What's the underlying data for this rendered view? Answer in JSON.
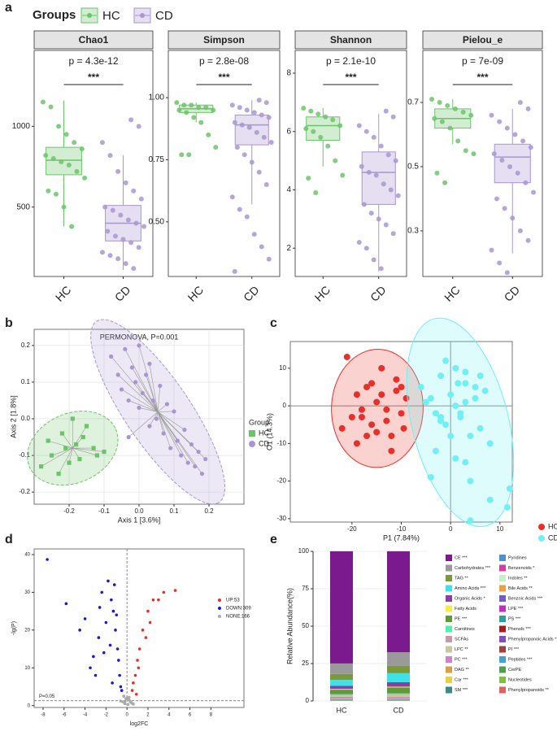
{
  "chart_data": [
    {
      "type": "box",
      "panel_label": "a",
      "legend_title": "Groups",
      "categories": [
        "HC",
        "CD"
      ],
      "series": [
        {
          "name": "HC",
          "color": "#6cc46a"
        },
        {
          "name": "CD",
          "color": "#a996d0"
        }
      ],
      "facets": [
        {
          "title": "Chao1",
          "annotation": "p = 4.3e-12",
          "significance": "***",
          "ylim": [
            70,
            1470
          ],
          "yticks": [
            500,
            1000
          ],
          "boxes": [
            {
              "whislo": 380,
              "q1": 700,
              "med": 790,
              "q3": 870,
              "whishi": 1160
            },
            {
              "whislo": 110,
              "q1": 290,
              "med": 400,
              "q3": 510,
              "whishi": 820
            }
          ],
          "points": [
            [
              1150,
              1120,
              1000,
              950,
              900,
              860,
              820,
              800,
              780,
              760,
              720,
              680,
              600,
              580,
              500,
              380
            ],
            [
              1040,
              1000,
              900,
              820,
              720,
              650,
              600,
              550,
              500,
              480,
              450,
              420,
              400,
              380,
              350,
              320,
              300,
              280,
              250,
              220,
              200,
              180,
              150,
              120
            ]
          ]
        },
        {
          "title": "Simpson",
          "annotation": "p = 2.8e-08",
          "significance": "***",
          "ylim": [
            0.28,
            1.19
          ],
          "yticks": [
            {
              "value": 0.5,
              "label": "0.50"
            },
            {
              "value": 0.75,
              "label": "0.75"
            },
            {
              "value": 1,
              "label": "1.00"
            }
          ],
          "boxes": [
            {
              "whislo": 0.9,
              "q1": 0.94,
              "med": 0.955,
              "q3": 0.97,
              "whishi": 0.98
            },
            {
              "whislo": 0.57,
              "q1": 0.81,
              "med": 0.89,
              "q3": 0.93,
              "whishi": 0.99
            }
          ],
          "points": [
            [
              0.98,
              0.97,
              0.97,
              0.96,
              0.96,
              0.95,
              0.95,
              0.94,
              0.92,
              0.9,
              0.85,
              0.8,
              0.77,
              0.77
            ],
            [
              0.99,
              0.98,
              0.97,
              0.96,
              0.95,
              0.94,
              0.93,
              0.92,
              0.9,
              0.89,
              0.88,
              0.86,
              0.84,
              0.82,
              0.8,
              0.77,
              0.74,
              0.7,
              0.65,
              0.6,
              0.55,
              0.52,
              0.45,
              0.4,
              0.35,
              0.3
            ]
          ]
        },
        {
          "title": "Shannon",
          "annotation": "p = 2.1e-10",
          "significance": "***",
          "ylim": [
            1.03,
            8.78
          ],
          "yticks": [
            2,
            4,
            6,
            8
          ],
          "boxes": [
            {
              "whislo": 4.8,
              "q1": 5.7,
              "med": 6.2,
              "q3": 6.5,
              "whishi": 6.8
            },
            {
              "whislo": 1.2,
              "q1": 3.5,
              "med": 4.6,
              "q3": 5.3,
              "whishi": 6.6
            }
          ],
          "points": [
            [
              6.8,
              6.7,
              6.6,
              6.5,
              6.4,
              6.2,
              6.1,
              6.0,
              5.8,
              5.5,
              5.0,
              4.5,
              4.4,
              3.9
            ],
            [
              6.7,
              6.5,
              6.2,
              6.0,
              5.8,
              5.5,
              5.2,
              5.0,
              4.8,
              4.6,
              4.5,
              4.2,
              4.0,
              3.8,
              3.5,
              3.2,
              3.0,
              2.8,
              2.5,
              2.2,
              2.0,
              1.6,
              1.3
            ]
          ]
        },
        {
          "title": "Pielou_e",
          "annotation": "p = 7e-09",
          "significance": "***",
          "ylim": [
            0.158,
            0.862
          ],
          "yticks": [
            0.3,
            0.5,
            0.7
          ],
          "boxes": [
            {
              "whislo": 0.57,
              "q1": 0.62,
              "med": 0.65,
              "q3": 0.68,
              "whishi": 0.71
            },
            {
              "whislo": 0.23,
              "q1": 0.45,
              "med": 0.53,
              "q3": 0.57,
              "whishi": 0.68
            }
          ],
          "points": [
            [
              0.71,
              0.7,
              0.69,
              0.68,
              0.67,
              0.66,
              0.65,
              0.64,
              0.62,
              0.58,
              0.55,
              0.54,
              0.48,
              0.45
            ],
            [
              0.7,
              0.68,
              0.66,
              0.64,
              0.62,
              0.6,
              0.58,
              0.56,
              0.54,
              0.52,
              0.5,
              0.48,
              0.45,
              0.42,
              0.4,
              0.37,
              0.34,
              0.3,
              0.27,
              0.24,
              0.2,
              0.17
            ]
          ]
        }
      ]
    },
    {
      "type": "scatter",
      "panel_label": "b",
      "title": "PERMONOVA, P=0.001",
      "x_label": "Axis 1 [3.6%]",
      "y_label": "Axis 2 [1.8%]",
      "legend_title": "Group",
      "legend": "right",
      "grid": true,
      "ellipse": true,
      "spokes": true,
      "xlim": [
        -0.3,
        0.3
      ],
      "ylim": [
        -0.233,
        0.244
      ],
      "xticks": [
        -0.2,
        -0.1,
        {
          "value": 0,
          "label": "0.0"
        },
        0.1,
        0.2
      ],
      "yticks": [
        -0.2,
        -0.1,
        {
          "value": 0,
          "label": "0.0"
        },
        0.1,
        0.2
      ],
      "series": [
        {
          "name": "HC",
          "color": "#6cc46a",
          "marker": "square",
          "x": [
            -0.28,
            -0.26,
            -0.25,
            -0.23,
            -0.22,
            -0.21,
            -0.2,
            -0.19,
            -0.18,
            -0.17,
            -0.16,
            -0.15,
            -0.13,
            -0.12,
            -0.1
          ],
          "y": [
            -0.13,
            -0.06,
            -0.1,
            -0.15,
            -0.04,
            -0.08,
            -0.12,
            0.0,
            -0.07,
            -0.11,
            -0.05,
            -0.02,
            -0.08,
            -0.1,
            -0.09
          ]
        },
        {
          "name": "CD",
          "color": "#a996d0",
          "marker": "circle",
          "x": [
            -0.08,
            -0.06,
            -0.05,
            -0.04,
            -0.03,
            -0.02,
            -0.01,
            0.0,
            0.0,
            0.01,
            0.02,
            0.03,
            0.03,
            0.04,
            0.05,
            0.06,
            0.07,
            0.08,
            0.09,
            0.1,
            0.11,
            0.12,
            0.13,
            0.14,
            0.15,
            0.16,
            0.17,
            0.18,
            0.19,
            -0.03
          ],
          "y": [
            0.17,
            0.12,
            0.08,
            0.19,
            0.05,
            0.14,
            0.1,
            0.2,
            0.03,
            0.07,
            0.12,
            -0.02,
            0.15,
            0.05,
            0.0,
            0.09,
            -0.04,
            0.04,
            -0.08,
            0.02,
            -0.06,
            -0.1,
            -0.03,
            -0.12,
            -0.07,
            -0.13,
            -0.09,
            -0.15,
            -0.11,
            -0.05
          ]
        }
      ]
    },
    {
      "type": "scatter",
      "panel_label": "c",
      "x_label": "P1 (7.84%)",
      "y_label": "O1 (14.3%)",
      "legend": "right",
      "grid": false,
      "ellipse": true,
      "spokes": false,
      "xlim": [
        -32.5,
        12.5
      ],
      "ylim": [
        -30.9,
        17.1
      ],
      "xticks": [
        -20,
        -10,
        0,
        10
      ],
      "yticks": [
        -30,
        -20,
        -10,
        0,
        10
      ],
      "hlines": [
        0
      ],
      "vlines": [
        0
      ],
      "series": [
        {
          "name": "HC",
          "color": "#e8302a",
          "marker": "circle",
          "x": [
            -21,
            -19,
            -18,
            -17,
            -16,
            -15,
            -14,
            -13,
            -12,
            -11,
            -10,
            -9,
            -13,
            -15,
            -17,
            -19,
            -22,
            -20,
            -12,
            -10,
            -14,
            -18,
            -16,
            -11,
            -9.5
          ],
          "y": [
            13,
            3,
            -3,
            5,
            -5,
            1,
            3,
            -1,
            -8,
            7,
            5,
            2,
            -4,
            -7,
            -8,
            -10,
            -6,
            -3,
            -12,
            -2,
            10,
            -1,
            6,
            4,
            -6
          ]
        },
        {
          "name": "CD",
          "color": "#6ff0f4",
          "marker": "circle",
          "x": [
            -6,
            -4,
            -3,
            -2,
            -1,
            0,
            1,
            2,
            3,
            4,
            5,
            6,
            7,
            8,
            -3,
            -1,
            1,
            3,
            5,
            2,
            0,
            4,
            6,
            -2,
            3,
            1,
            -4,
            8,
            11.5,
            12,
            -2,
            4,
            1.5,
            3,
            -5
          ],
          "y": [
            5,
            2,
            -2,
            8,
            -5,
            3,
            10,
            -3,
            6,
            -8,
            2,
            -6,
            4,
            -10,
            -12,
            12,
            0,
            -15,
            5,
            -2,
            -8,
            -20,
            8,
            -4,
            1,
            -14,
            -19,
            -25,
            -27,
            -22,
            -3,
            -30.5,
            6,
            9,
            1
          ]
        }
      ]
    },
    {
      "type": "scatter",
      "panel_label": "d",
      "x_label": "log2FC",
      "y_label": "-lg(P)",
      "legend": "inside-right",
      "grid": false,
      "ellipse": false,
      "spokes": false,
      "xlim": [
        -8.85,
        11.15
      ],
      "ylim": [
        -0.5,
        41.5
      ],
      "xticks": [
        -8,
        -6,
        -4,
        -2,
        0,
        2,
        4,
        6,
        8
      ],
      "yticks": [
        0,
        10,
        20,
        30,
        40
      ],
      "hlines": [
        1.3
      ],
      "vlines": [
        0
      ],
      "reference_style": "dashed",
      "threshold_label": "P=0.05",
      "series": [
        {
          "name": "UP:53",
          "color": "#e8302a",
          "marker": "circle",
          "x": [
            0.5,
            0.8,
            1,
            1.2,
            1.5,
            2,
            2.5,
            3,
            3.5,
            4.6,
            1.8,
            0.6,
            1.1,
            2.2,
            0.9
          ],
          "y": [
            4,
            8,
            12,
            15,
            20,
            25,
            28,
            28,
            30,
            30.5,
            18,
            6,
            10,
            22,
            3
          ]
        },
        {
          "name": "DOWN:309",
          "color": "#1a1ad0",
          "marker": "circle",
          "x": [
            -7.6,
            -5.8,
            -4.5,
            -4,
            -3.5,
            -3,
            -2.7,
            -2.4,
            -2,
            -1.8,
            -1.5,
            -1.3,
            -1.1,
            -0.9,
            -0.8,
            -0.7,
            -0.6,
            -2.2,
            -1.6,
            -1,
            -0.5,
            -3.2,
            -1.4,
            -1.2,
            -2.6
          ],
          "y": [
            38.7,
            27,
            20,
            23,
            10,
            8,
            18,
            30,
            22,
            33,
            28,
            25,
            20,
            15,
            12,
            8,
            5,
            14,
            16,
            24,
            4,
            13,
            6,
            32,
            26
          ]
        },
        {
          "name": "NONE:166",
          "color": "#aaaaaa",
          "marker": "circle",
          "x": [
            -0.4,
            -0.2,
            0,
            0.2,
            0.4,
            -0.3,
            0.1,
            0.3,
            -0.1,
            0.5,
            -0.6,
            0.6,
            0.2,
            -0.2
          ],
          "y": [
            1,
            0.5,
            2,
            1.5,
            0.8,
            2.5,
            0.3,
            1.1,
            1.8,
            0.6,
            1.2,
            0.4,
            2.2,
            0.9
          ]
        }
      ]
    },
    {
      "type": "stacked-bar",
      "panel_label": "e",
      "y_label": "Relative Abundance(%)",
      "categories": [
        "HC",
        "CD"
      ],
      "ylim": [
        0,
        100
      ],
      "yticks": [
        0,
        25,
        50,
        75,
        100
      ],
      "grid": true,
      "series": [
        {
          "name": "CE ***",
          "color": "#7b1a8e",
          "values": [
            75,
            67.5
          ]
        },
        {
          "name": "Carbohydrates ***",
          "color": "#9a9a9a",
          "values": [
            7,
            9
          ]
        },
        {
          "name": "TAG **",
          "color": "#7a9a3a",
          "values": [
            4,
            5
          ]
        },
        {
          "name": "Amino Acids ***",
          "color": "#40e0e8",
          "values": [
            4,
            6
          ]
        },
        {
          "name": "Organic Acids *",
          "color": "#8a3ca8",
          "values": [
            2,
            3
          ]
        },
        {
          "name": "Fatty Acids",
          "color": "#f0f040",
          "values": [
            0.5,
            0.5
          ]
        },
        {
          "name": "PE ***",
          "color": "#5e9a3a",
          "values": [
            3,
            4
          ]
        },
        {
          "name": "Carnitines",
          "color": "#50f0b0",
          "values": [
            0.5,
            0.5
          ]
        },
        {
          "name": "SCFAs",
          "color": "#c89aa8",
          "values": [
            0.3,
            0.4
          ]
        },
        {
          "name": "LPC **",
          "color": "#c8c8a0",
          "values": [
            1,
            1.5
          ]
        },
        {
          "name": "PC ***",
          "color": "#d080d0",
          "values": [
            1,
            1
          ]
        },
        {
          "name": "DAG **",
          "color": "#d8a040",
          "values": [
            0.5,
            0.4
          ]
        },
        {
          "name": "Car ***",
          "color": "#e8d040",
          "values": [
            0.3,
            0.3
          ]
        },
        {
          "name": "SM ***",
          "color": "#3a8a8a",
          "values": [
            0.4,
            0.4
          ]
        },
        {
          "name": "Pyridines",
          "color": "#5090d0",
          "values": [
            0.04,
            0.04
          ]
        },
        {
          "name": "Benzenoids *",
          "color": "#d040a0",
          "values": [
            0.04,
            0.04
          ]
        },
        {
          "name": "Indoles **",
          "color": "#c8f0c8",
          "values": [
            0.04,
            0.04
          ]
        },
        {
          "name": "Bile Acids **",
          "color": "#e8a040",
          "values": [
            0.04,
            0.04
          ]
        },
        {
          "name": "Benzoic Acids ***",
          "color": "#7060c0",
          "values": [
            0.04,
            0.04
          ]
        },
        {
          "name": "LPE ***",
          "color": "#c030c0",
          "values": [
            0.04,
            0.04
          ]
        },
        {
          "name": "PS ***",
          "color": "#30a0a0",
          "values": [
            0.04,
            0.04
          ]
        },
        {
          "name": "Phenols ***",
          "color": "#a02020",
          "values": [
            0.04,
            0.04
          ]
        },
        {
          "name": "Phenylpropanoic Acids **",
          "color": "#8050c0",
          "values": [
            0.04,
            0.04
          ]
        },
        {
          "name": "PI ***",
          "color": "#a04040",
          "values": [
            0.04,
            0.04
          ]
        },
        {
          "name": "Peptides ***",
          "color": "#40a0e0",
          "values": [
            0.04,
            0.04
          ]
        },
        {
          "name": "CerPE",
          "color": "#50a050",
          "values": [
            0.04,
            0.04
          ]
        },
        {
          "name": "Nucleotides",
          "color": "#80c040",
          "values": [
            0.04,
            0.04
          ]
        },
        {
          "name": "Phenylpropanoids **",
          "color": "#e06060",
          "values": [
            0.04,
            0.04
          ]
        }
      ]
    }
  ]
}
